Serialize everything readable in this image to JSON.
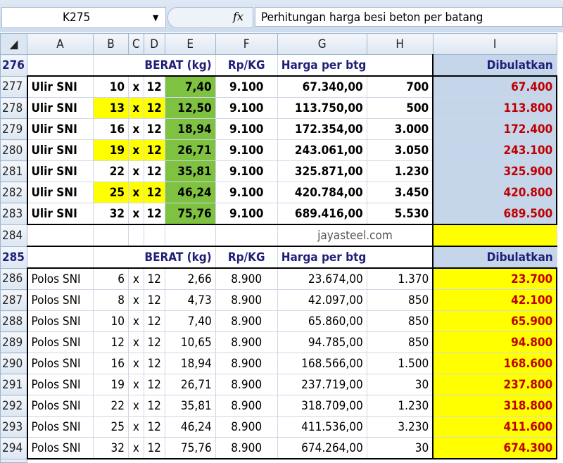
{
  "name_box": "K275",
  "formula": "Perhitungan harga besi beton per batang",
  "columns": [
    "A",
    "B",
    "C",
    "D",
    "E",
    "F",
    "G",
    "H",
    "I"
  ],
  "header": {
    "row": "276",
    "berat": "BERAT (kg)",
    "rpkg": "Rp/KG",
    "harga": "Harga per btg",
    "dibulatkan": "Dibulatkan"
  },
  "header2": {
    "row": "285",
    "berat": "BERAT (kg)",
    "rpkg": "Rp/KG",
    "harga": "Harga per btg",
    "dibulatkan": "Dibulatkan"
  },
  "footer": {
    "row": "284",
    "site": "jayasteel.com"
  },
  "ulir": [
    {
      "row": "277",
      "name": "Ulir SNI",
      "d": "10",
      "x": "x",
      "l": "12",
      "berat": "7,40",
      "rp": "9.100",
      "harga": "67.340,00",
      "h": "700",
      "bul": "67.400",
      "yellow": false
    },
    {
      "row": "278",
      "name": "Ulir SNI",
      "d": "13",
      "x": "x",
      "l": "12",
      "berat": "12,50",
      "rp": "9.100",
      "harga": "113.750,00",
      "h": "500",
      "bul": "113.800",
      "yellow": true
    },
    {
      "row": "279",
      "name": "Ulir SNI",
      "d": "16",
      "x": "x",
      "l": "12",
      "berat": "18,94",
      "rp": "9.100",
      "harga": "172.354,00",
      "h": "3.000",
      "bul": "172.400",
      "yellow": false
    },
    {
      "row": "280",
      "name": "Ulir SNI",
      "d": "19",
      "x": "x",
      "l": "12",
      "berat": "26,71",
      "rp": "9.100",
      "harga": "243.061,00",
      "h": "3.050",
      "bul": "243.100",
      "yellow": true
    },
    {
      "row": "281",
      "name": "Ulir SNI",
      "d": "22",
      "x": "x",
      "l": "12",
      "berat": "35,81",
      "rp": "9.100",
      "harga": "325.871,00",
      "h": "1.230",
      "bul": "325.900",
      "yellow": false
    },
    {
      "row": "282",
      "name": "Ulir SNI",
      "d": "25",
      "x": "x",
      "l": "12",
      "berat": "46,24",
      "rp": "9.100",
      "harga": "420.784,00",
      "h": "3.450",
      "bul": "420.800",
      "yellow": true
    },
    {
      "row": "283",
      "name": "Ulir SNI",
      "d": "32",
      "x": "x",
      "l": "12",
      "berat": "75,76",
      "rp": "9.100",
      "harga": "689.416,00",
      "h": "5.530",
      "bul": "689.500",
      "yellow": false
    }
  ],
  "polos": [
    {
      "row": "286",
      "name": "Polos SNI",
      "d": "6",
      "x": "x",
      "l": "12",
      "berat": "2,66",
      "rp": "8.900",
      "harga": "23.674,00",
      "h": "1.370",
      "bul": "23.700"
    },
    {
      "row": "287",
      "name": "Polos SNI",
      "d": "8",
      "x": "x",
      "l": "12",
      "berat": "4,73",
      "rp": "8.900",
      "harga": "42.097,00",
      "h": "850",
      "bul": "42.100"
    },
    {
      "row": "288",
      "name": "Polos SNI",
      "d": "10",
      "x": "x",
      "l": "12",
      "berat": "7,40",
      "rp": "8.900",
      "harga": "65.860,00",
      "h": "850",
      "bul": "65.900"
    },
    {
      "row": "289",
      "name": "Polos SNI",
      "d": "12",
      "x": "x",
      "l": "12",
      "berat": "10,65",
      "rp": "8.900",
      "harga": "94.785,00",
      "h": "850",
      "bul": "94.800"
    },
    {
      "row": "290",
      "name": "Polos SNI",
      "d": "16",
      "x": "x",
      "l": "12",
      "berat": "18,94",
      "rp": "8.900",
      "harga": "168.566,00",
      "h": "1.500",
      "bul": "168.600"
    },
    {
      "row": "291",
      "name": "Polos SNI",
      "d": "19",
      "x": "x",
      "l": "12",
      "berat": "26,71",
      "rp": "8.900",
      "harga": "237.719,00",
      "h": "30",
      "bul": "237.800"
    },
    {
      "row": "292",
      "name": "Polos SNI",
      "d": "22",
      "x": "x",
      "l": "12",
      "berat": "35,81",
      "rp": "8.900",
      "harga": "318.709,00",
      "h": "1.230",
      "bul": "318.800"
    },
    {
      "row": "293",
      "name": "Polos SNI",
      "d": "25",
      "x": "x",
      "l": "12",
      "berat": "46,24",
      "rp": "8.900",
      "harga": "411.536,00",
      "h": "3.230",
      "bul": "411.600"
    },
    {
      "row": "294",
      "name": "Polos SNI",
      "d": "32",
      "x": "x",
      "l": "12",
      "berat": "75,76",
      "rp": "8.900",
      "harga": "674.264,00",
      "h": "30",
      "bul": "674.300"
    }
  ],
  "colors": {
    "yellow": "#ffff00",
    "green": "#7fc241",
    "blue": "#c5d5ea",
    "red_text": "#c00000"
  }
}
